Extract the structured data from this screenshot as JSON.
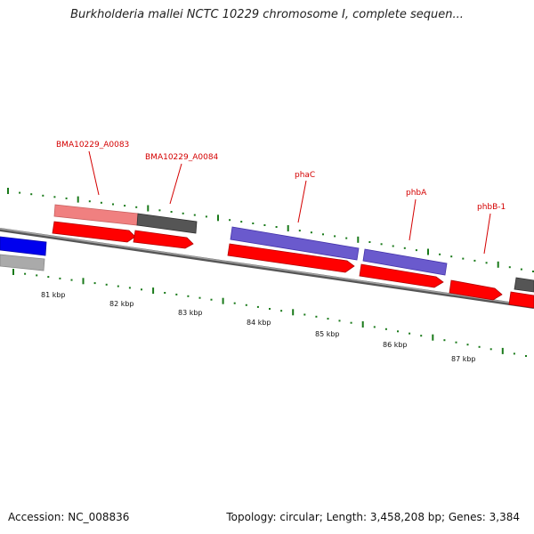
{
  "title": "Burkholderia mallei NCTC 10229 chromosome I, complete sequen...",
  "footer": {
    "accession": "Accession: NC_008836",
    "info": "Topology: circular; Length: 3,458,208 bp; Genes: 3,384"
  },
  "colors": {
    "cds": "#ff0000",
    "gene_pink": "#f08080",
    "gene_dark": "#555555",
    "gene_purple": "#6a5acd",
    "gene_blue": "#0000ee",
    "gene_gray": "#aaaaaa",
    "backbone": "#808080",
    "tick_green": "#1a7a1a",
    "label_red": "#d40000"
  },
  "scale": {
    "start_kbp": 81,
    "end_kbp": 87,
    "labels": [
      "81 kbp",
      "82 kbp",
      "83 kbp",
      "84 kbp",
      "85 kbp",
      "86 kbp",
      "87 kbp"
    ]
  },
  "genes": [
    {
      "name": "BMA10229_A0083"
    },
    {
      "name": "BMA10229_A0084"
    },
    {
      "name": "phaC"
    },
    {
      "name": "phbA"
    },
    {
      "name": "phbB-1"
    }
  ]
}
